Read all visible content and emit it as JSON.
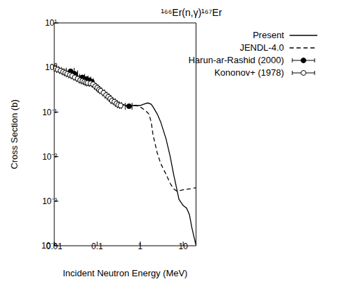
{
  "chart_data": {
    "type": "line",
    "title": "¹⁶⁶Er(n,γ)¹⁶⁷Er",
    "x_label": "Incident Neutron Energy (MeV)",
    "y_label": "Cross Section (b)",
    "log": true,
    "grid": false,
    "legend": "top-right",
    "xlim": [
      0.01,
      20
    ],
    "ylim": [
      0.0001,
      10
    ],
    "xticks": [
      0.01,
      0.1,
      1,
      10
    ],
    "yticks": [
      {
        "value": 0.0001,
        "label": "10⁻⁴"
      },
      {
        "value": 0.001,
        "label": "10⁻³"
      },
      {
        "value": 0.01,
        "label": "10⁻²"
      },
      {
        "value": 0.1,
        "label": "10⁻¹"
      },
      {
        "value": 1,
        "label": "10⁰"
      },
      {
        "value": 10,
        "label": "10¹"
      }
    ],
    "series": [
      {
        "name": "Present",
        "type": "line",
        "color": "#000000",
        "line_style": "solid",
        "x": [
          0.01,
          0.02,
          0.03,
          0.05,
          0.07,
          0.08,
          0.09,
          0.1,
          0.12,
          0.15,
          0.2,
          0.25,
          0.3,
          0.4,
          0.5,
          0.7,
          1.0,
          1.2,
          1.5,
          1.8,
          2,
          2.5,
          3,
          4,
          5,
          6,
          7,
          8,
          10,
          12,
          14,
          16,
          20
        ],
        "values": [
          1.0,
          0.78,
          0.67,
          0.55,
          0.48,
          0.46,
          0.42,
          0.37,
          0.32,
          0.26,
          0.21,
          0.18,
          0.16,
          0.145,
          0.14,
          0.14,
          0.14,
          0.15,
          0.16,
          0.15,
          0.13,
          0.09,
          0.06,
          0.025,
          0.01,
          0.004,
          0.002,
          0.0011,
          0.0008,
          0.0007,
          0.0005,
          0.00025,
          0.0001
        ]
      },
      {
        "name": "JENDL-4.0",
        "type": "line",
        "color": "#000000",
        "line_style": "dashed",
        "x": [
          0.01,
          0.02,
          0.05,
          0.08,
          0.1,
          0.2,
          0.3,
          0.5,
          0.8,
          1,
          1.3,
          1.6,
          1.8,
          2,
          2.5,
          3,
          4,
          5,
          6,
          7,
          8,
          10,
          15,
          20
        ],
        "values": [
          1.02,
          0.8,
          0.57,
          0.47,
          0.38,
          0.21,
          0.16,
          0.14,
          0.14,
          0.13,
          0.11,
          0.09,
          0.06,
          0.03,
          0.012,
          0.007,
          0.004,
          0.0025,
          0.0019,
          0.0017,
          0.0017,
          0.0018,
          0.0019,
          0.002
        ]
      },
      {
        "name": "Harun-ar-Rashid (2000)",
        "type": "scatter",
        "color": "#000000",
        "marker": "filled_circle",
        "x": [
          0.024,
          0.03,
          0.045,
          0.055,
          0.065,
          0.075,
          0.55
        ],
        "values": [
          0.82,
          0.72,
          0.6,
          0.55,
          0.52,
          0.48,
          0.135
        ],
        "x_err": [
          0.005,
          0.005,
          0.006,
          0.006,
          0.006,
          0.006,
          0.1
        ]
      },
      {
        "name": "Kononov+ (1978)",
        "type": "scatter",
        "color": "#000000",
        "marker": "open_circle",
        "x": [
          0.0105,
          0.012,
          0.014,
          0.016,
          0.018,
          0.02,
          0.023,
          0.026,
          0.03,
          0.035,
          0.04,
          0.045,
          0.05,
          0.055,
          0.06,
          0.07,
          0.08,
          0.09,
          0.1,
          0.11,
          0.12,
          0.14,
          0.16,
          0.18,
          0.2,
          0.22,
          0.25,
          0.28,
          0.31,
          0.35
        ],
        "values": [
          0.95,
          0.9,
          0.85,
          0.8,
          0.76,
          0.72,
          0.68,
          0.65,
          0.6,
          0.56,
          0.52,
          0.5,
          0.48,
          0.46,
          0.45,
          0.44,
          0.42,
          0.38,
          0.35,
          0.32,
          0.3,
          0.27,
          0.24,
          0.22,
          0.2,
          0.18,
          0.17,
          0.155,
          0.145,
          0.14
        ],
        "x_err": [
          0.0005,
          0.0006,
          0.0007,
          0.0008,
          0.0009,
          0.001,
          0.0012,
          0.0013,
          0.0015,
          0.0018,
          0.002,
          0.0023,
          0.0025,
          0.0028,
          0.003,
          0.0035,
          0.004,
          0.0045,
          0.005,
          0.0055,
          0.006,
          0.007,
          0.008,
          0.009,
          0.01,
          0.011,
          0.0125,
          0.014,
          0.0155,
          0.0175
        ]
      }
    ]
  }
}
